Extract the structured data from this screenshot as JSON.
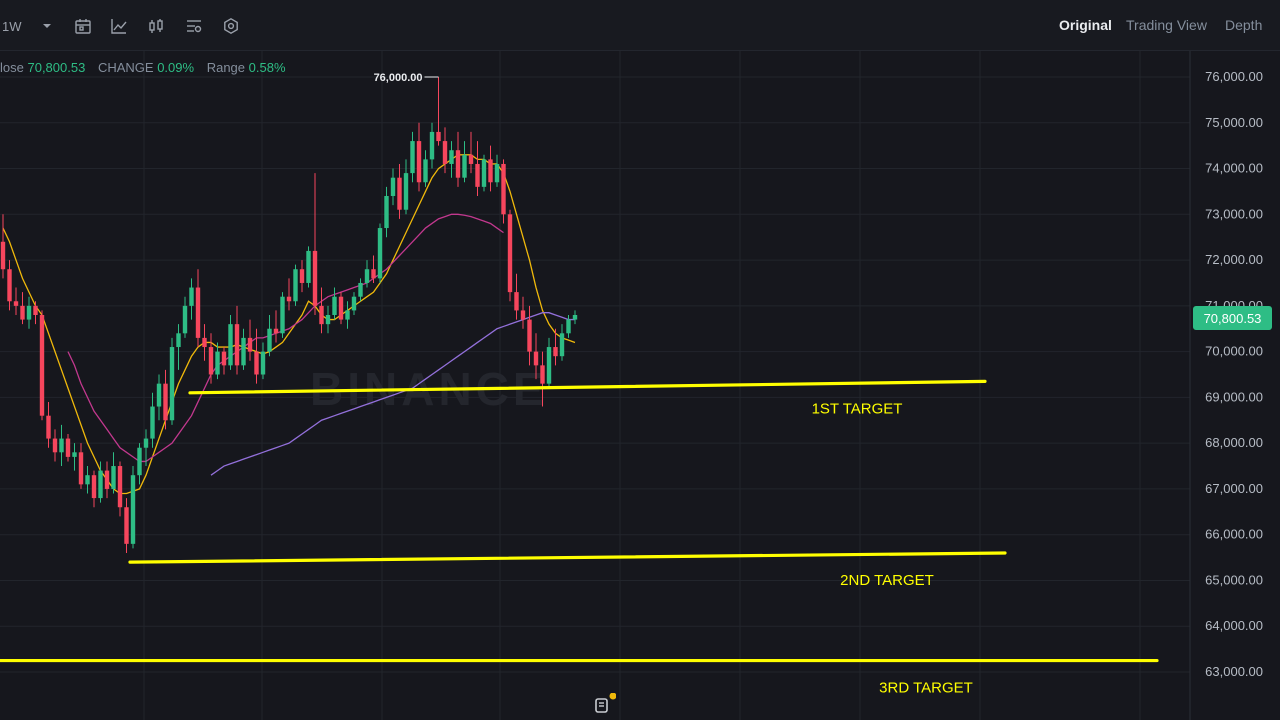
{
  "toolbar": {
    "interval": "1W",
    "view_tabs": [
      "Original",
      "Trading View",
      "Depth"
    ],
    "active_tab": "Original"
  },
  "info": {
    "close_label": "lose",
    "close_value": "70,800.53",
    "change_label": "CHANGE",
    "change_value": "0.09%",
    "range_label": "Range",
    "range_value": "0.58%"
  },
  "watermark": "BINANCE",
  "current_price": "70,800.53",
  "colors": {
    "up": "#2ebd85",
    "down": "#f6465d",
    "ma_fast": "#f0b90b",
    "ma_mid": "#c2388e",
    "ma_slow": "#9370db",
    "target": "#ffff00"
  },
  "chart_data": {
    "type": "candlestick",
    "y_axis": {
      "ylim": [
        62700,
        76600
      ],
      "ticks": [
        "76,000.00",
        "75,000.00",
        "74,000.00",
        "73,000.00",
        "72,000.00",
        "71,000.00",
        "70,000.00",
        "69,000.00",
        "68,000.00",
        "67,000.00",
        "66,000.00",
        "65,000.00",
        "64,000.00",
        "63,000.00"
      ],
      "tick_values": [
        76000,
        75000,
        74000,
        73000,
        72000,
        71000,
        70000,
        69000,
        68000,
        67000,
        66000,
        65000,
        64000,
        63000
      ]
    },
    "high_annotation": {
      "label": "76,000.00",
      "value": 76000
    },
    "candles": [
      [
        72400,
        73000,
        71600,
        71800
      ],
      [
        71800,
        72000,
        70900,
        71100
      ],
      [
        71100,
        71400,
        70800,
        71000
      ],
      [
        71000,
        71300,
        70600,
        70700
      ],
      [
        70700,
        71200,
        70500,
        71000
      ],
      [
        71000,
        71100,
        70600,
        70800
      ],
      [
        70800,
        70900,
        68500,
        68600
      ],
      [
        68600,
        68900,
        67900,
        68100
      ],
      [
        68100,
        68300,
        67600,
        67800
      ],
      [
        67800,
        68400,
        67500,
        68100
      ],
      [
        68100,
        68200,
        67600,
        67700
      ],
      [
        67700,
        68000,
        67400,
        67800
      ],
      [
        67800,
        68000,
        67000,
        67100
      ],
      [
        67100,
        67500,
        66900,
        67300
      ],
      [
        67300,
        67400,
        66600,
        66800
      ],
      [
        66800,
        67600,
        66700,
        67400
      ],
      [
        67400,
        67600,
        66800,
        67000
      ],
      [
        67000,
        67800,
        66900,
        67500
      ],
      [
        67500,
        67600,
        66400,
        66600
      ],
      [
        66600,
        66800,
        65600,
        65800
      ],
      [
        65800,
        67500,
        65700,
        67300
      ],
      [
        67300,
        68000,
        67100,
        67900
      ],
      [
        67900,
        68300,
        67500,
        68100
      ],
      [
        68100,
        69100,
        67900,
        68800
      ],
      [
        68800,
        69500,
        68500,
        69300
      ],
      [
        69300,
        69600,
        68300,
        68500
      ],
      [
        68500,
        70300,
        68400,
        70100
      ],
      [
        70100,
        70600,
        69600,
        70400
      ],
      [
        70400,
        71200,
        70300,
        71000
      ],
      [
        71000,
        71600,
        70700,
        71400
      ],
      [
        71400,
        71800,
        70100,
        70300
      ],
      [
        70300,
        70600,
        69800,
        70100
      ],
      [
        70100,
        70400,
        69300,
        69500
      ],
      [
        69500,
        70200,
        69400,
        70000
      ],
      [
        70000,
        70100,
        69500,
        69700
      ],
      [
        69700,
        70800,
        69600,
        70600
      ],
      [
        70600,
        71000,
        69500,
        69700
      ],
      [
        69700,
        70500,
        69600,
        70300
      ],
      [
        70300,
        70700,
        69800,
        70000
      ],
      [
        70000,
        70500,
        69300,
        69500
      ],
      [
        69500,
        70200,
        69400,
        70000
      ],
      [
        70000,
        70800,
        69900,
        70500
      ],
      [
        70500,
        70900,
        70200,
        70400
      ],
      [
        70400,
        71300,
        70300,
        71200
      ],
      [
        71200,
        71600,
        70900,
        71100
      ],
      [
        71100,
        71900,
        71000,
        71800
      ],
      [
        71800,
        72000,
        71300,
        71500
      ],
      [
        71500,
        72300,
        71400,
        72200
      ],
      [
        72200,
        73900,
        70800,
        71000
      ],
      [
        71000,
        71400,
        70400,
        70600
      ],
      [
        70600,
        71000,
        70400,
        70800
      ],
      [
        70800,
        71400,
        70700,
        71200
      ],
      [
        71200,
        71300,
        70600,
        70700
      ],
      [
        70700,
        71100,
        70500,
        70900
      ],
      [
        70900,
        71300,
        70800,
        71200
      ],
      [
        71200,
        71600,
        71100,
        71500
      ],
      [
        71500,
        72000,
        71400,
        71800
      ],
      [
        71800,
        72100,
        71500,
        71600
      ],
      [
        71600,
        72800,
        71500,
        72700
      ],
      [
        72700,
        73600,
        72500,
        73400
      ],
      [
        73400,
        74000,
        73200,
        73800
      ],
      [
        73800,
        74100,
        72900,
        73100
      ],
      [
        73100,
        74200,
        73000,
        73900
      ],
      [
        73900,
        74800,
        73700,
        74600
      ],
      [
        74600,
        75000,
        73500,
        73700
      ],
      [
        73700,
        74400,
        73600,
        74200
      ],
      [
        74200,
        75000,
        74000,
        74800
      ],
      [
        74800,
        76000,
        74500,
        74600
      ],
      [
        74600,
        74900,
        73900,
        74100
      ],
      [
        74100,
        74600,
        73800,
        74400
      ],
      [
        74400,
        74800,
        73600,
        73800
      ],
      [
        73800,
        74600,
        73700,
        74300
      ],
      [
        74300,
        74800,
        73900,
        74100
      ],
      [
        74100,
        74600,
        73400,
        73600
      ],
      [
        73600,
        74300,
        73500,
        74200
      ],
      [
        74200,
        74500,
        73500,
        73700
      ],
      [
        73700,
        74300,
        73600,
        74100
      ],
      [
        74100,
        74200,
        72800,
        73000
      ],
      [
        73000,
        73100,
        71100,
        71300
      ],
      [
        71300,
        71700,
        70700,
        70900
      ],
      [
        70900,
        71200,
        70500,
        70700
      ],
      [
        70700,
        71000,
        69700,
        70000
      ],
      [
        70000,
        70400,
        69400,
        69700
      ],
      [
        69700,
        70000,
        68800,
        69300
      ],
      [
        69300,
        70300,
        69200,
        70100
      ],
      [
        70100,
        70500,
        69700,
        69900
      ],
      [
        69900,
        70600,
        69800,
        70400
      ],
      [
        70400,
        70800,
        70300,
        70700
      ],
      [
        70700,
        70900,
        70600,
        70800
      ]
    ],
    "moving_averages": [
      {
        "values": [
          72700,
          72400,
          72000,
          71600,
          71300,
          71000,
          70800,
          70400,
          70000,
          69600,
          69200,
          68800,
          68400,
          68000,
          67700,
          67400,
          67200,
          67000,
          66900,
          66900,
          66950,
          67000,
          67300,
          67700,
          68100,
          68500,
          68900,
          69300,
          69600,
          69900,
          70100,
          70200,
          70200,
          70100,
          70100,
          70100,
          70150,
          70100,
          70050,
          70000,
          69950,
          70000,
          70100,
          70200,
          70400,
          70600,
          70800,
          71100,
          71000,
          70800,
          70700,
          70700,
          70800,
          70900,
          71000,
          71100,
          71200,
          71300,
          71500,
          71700,
          72000,
          72300,
          72600,
          72900,
          73200,
          73500,
          73800,
          74000,
          74100,
          74200,
          74300,
          74300,
          74300,
          74200,
          74200,
          74100,
          74100,
          73900,
          73500,
          73000,
          72500,
          72000,
          71400,
          70900,
          70600,
          70400,
          70300,
          70250,
          70200
        ]
      },
      {
        "values": [
          null,
          null,
          null,
          null,
          null,
          null,
          null,
          null,
          null,
          null,
          70000,
          69700,
          69300,
          69000,
          68700,
          68500,
          68300,
          68100,
          67900,
          67800,
          67700,
          67600,
          67600,
          67700,
          67800,
          67900,
          68000,
          68200,
          68400,
          68600,
          68900,
          69200,
          69500,
          69700,
          69800,
          69900,
          70000,
          70100,
          70200,
          70300,
          70300,
          70350,
          70400,
          70450,
          70500,
          70600,
          70700,
          70850,
          71000,
          71100,
          71200,
          71250,
          71300,
          71350,
          71400,
          71450,
          71500,
          71600,
          71700,
          71800,
          71950,
          72100,
          72250,
          72400,
          72550,
          72700,
          72800,
          72900,
          72950,
          73000,
          73000,
          72980,
          72950,
          72900,
          72850,
          72800,
          72700,
          72600
        ]
      },
      {
        "values": [
          null,
          null,
          null,
          null,
          null,
          null,
          null,
          null,
          null,
          null,
          null,
          null,
          null,
          null,
          null,
          null,
          null,
          null,
          null,
          null,
          null,
          null,
          null,
          null,
          null,
          null,
          null,
          null,
          null,
          null,
          null,
          null,
          67300,
          67400,
          67500,
          67550,
          67600,
          67650,
          67700,
          67750,
          67800,
          67850,
          67900,
          67950,
          68000,
          68100,
          68200,
          68300,
          68400,
          68500,
          68550,
          68600,
          68650,
          68700,
          68750,
          68800,
          68850,
          68900,
          68950,
          69000,
          69050,
          69100,
          69150,
          69200,
          69300,
          69400,
          69500,
          69600,
          69700,
          69800,
          69900,
          70000,
          70100,
          70200,
          70300,
          70400,
          70500,
          70550,
          70600,
          70650,
          70700,
          70750,
          70800,
          70850,
          70850,
          70800,
          70750,
          70700,
          70700
        ]
      }
    ],
    "target_lines": [
      {
        "label": "1ST TARGET",
        "start": 69100,
        "end": 69350
      },
      {
        "label": "2ND TARGET",
        "start": 65400,
        "end": 65600
      },
      {
        "label": "3RD TARGET",
        "start": 63250,
        "end": 63250
      }
    ]
  }
}
